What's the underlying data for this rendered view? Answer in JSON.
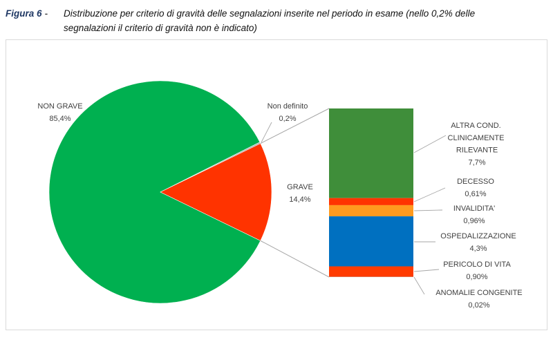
{
  "caption": {
    "label": "Figura 6",
    "dash": "-",
    "lines": [
      "Distribuzione per criterio di gravità delle segnalazioni inserite nel periodo in esame (nello 0,2% delle",
      "segnalazioni il criterio di gravità non è indicato)"
    ]
  },
  "colors": {
    "caption_label": "#1F3864",
    "text": "#404040",
    "leader_lines": "#A6A6A6",
    "frame_border": "#D9D9D9"
  },
  "chart_data": {
    "type": "pie",
    "subtype": "pie-of-bar",
    "slices": [
      {
        "label": "NON GRAVE",
        "value": 85.4,
        "value_label": "85,4%",
        "color": "#00B050"
      },
      {
        "label": "Non definito",
        "value": 0.2,
        "value_label": "0,2%",
        "color": "#A5A5A5"
      },
      {
        "label": "GRAVE",
        "value": 14.4,
        "value_label": "14,4%",
        "color": "#FF3300"
      }
    ],
    "breakdown": {
      "of": "GRAVE",
      "type": "stacked-bar",
      "segments": [
        {
          "label": "ALTRA COND. CLINICAMENTE RILEVANTE",
          "value": 7.7,
          "value_label": "7,7%",
          "color": "#3F8E3A"
        },
        {
          "label": "DECESSO",
          "value": 0.61,
          "value_label": "0,61%",
          "color": "#FF3300"
        },
        {
          "label": "INVALIDITA'",
          "value": 0.96,
          "value_label": "0,96%",
          "color": "#FF9A1F"
        },
        {
          "label": "OSPEDALIZZAZIONE",
          "value": 4.3,
          "value_label": "4,3%",
          "color": "#0070C0"
        },
        {
          "label": "PERICOLO DI VITA",
          "value": 0.9,
          "value_label": "0,90%",
          "color": "#FF3B00"
        },
        {
          "label": "ANOMALIE CONGENITE",
          "value": 0.02,
          "value_label": "0,02%",
          "color": "#A5A5A5"
        }
      ]
    }
  }
}
